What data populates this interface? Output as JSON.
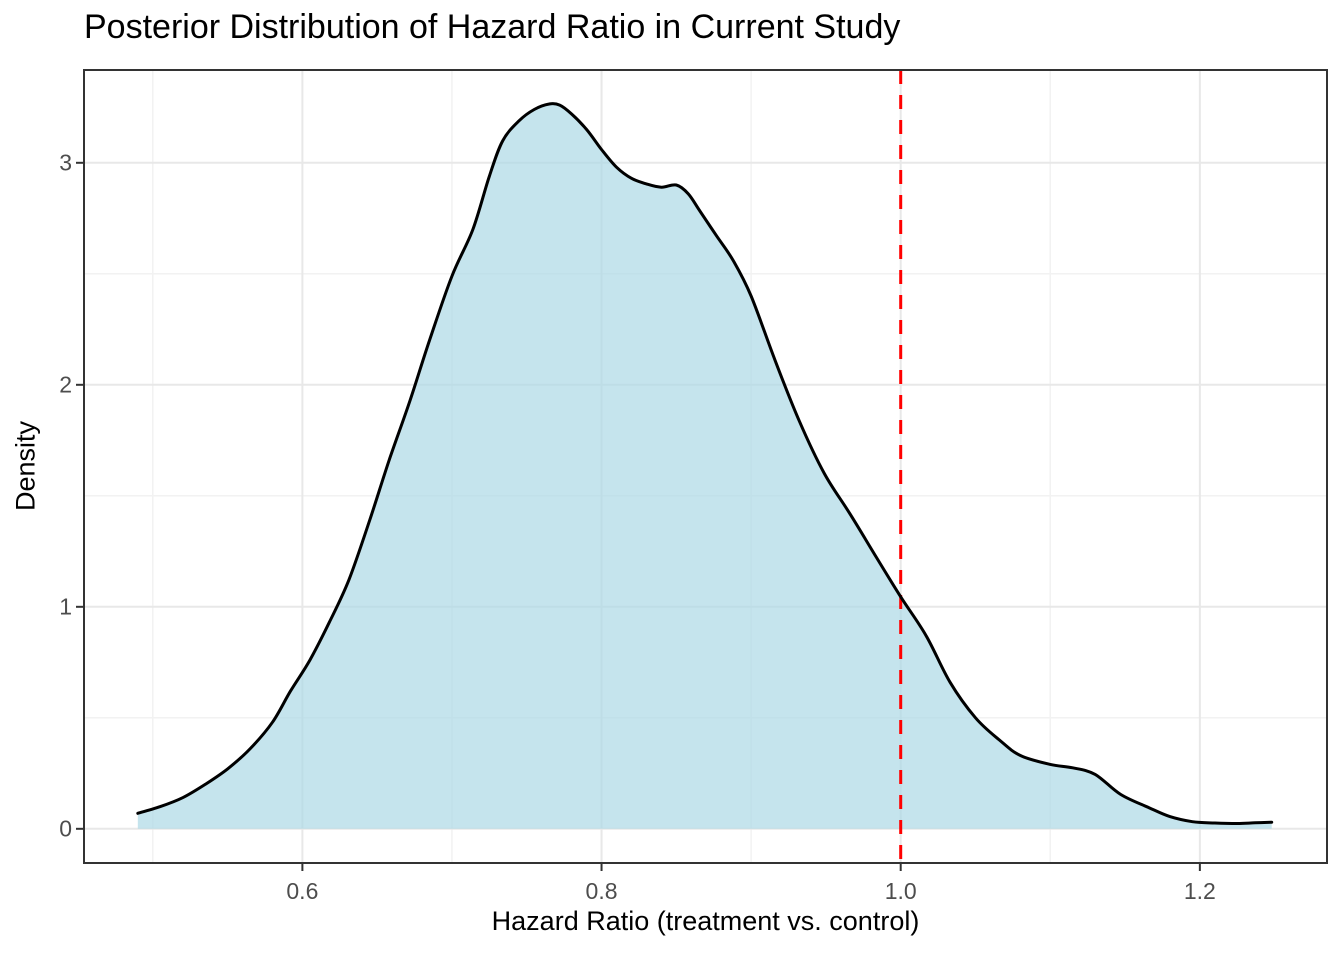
{
  "chart_data": {
    "type": "area",
    "subtype": "density",
    "title": "Posterior Distribution of Hazard Ratio in Current Study",
    "xlabel": "Hazard Ratio (treatment vs. control)",
    "ylabel": "Density",
    "x_ticks": [
      0.6,
      0.8,
      1.0,
      1.2
    ],
    "x_tick_labels": [
      "0.6",
      "0.8",
      "1.0",
      "1.2"
    ],
    "x_minor_ticks": [
      0.5,
      0.7,
      0.9,
      1.1
    ],
    "y_ticks": [
      0,
      1,
      2,
      3
    ],
    "y_tick_labels": [
      "0",
      "1",
      "2",
      "3"
    ],
    "y_minor_ticks": [
      0.5,
      1.5,
      2.5
    ],
    "xlim": [
      0.454,
      1.285
    ],
    "ylim": [
      -0.154,
      3.418
    ],
    "grid": true,
    "legend": false,
    "reference_line": {
      "x": 1.0,
      "style": "dashed",
      "color": "#FF0000"
    },
    "series": [
      {
        "name": "posterior-density",
        "x": [
          0.49,
          0.505,
          0.52,
          0.535,
          0.55,
          0.565,
          0.58,
          0.592,
          0.605,
          0.618,
          0.631,
          0.645,
          0.658,
          0.672,
          0.685,
          0.7,
          0.714,
          0.725,
          0.734,
          0.745,
          0.755,
          0.765,
          0.772,
          0.78,
          0.79,
          0.8,
          0.81,
          0.82,
          0.83,
          0.84,
          0.85,
          0.858,
          0.866,
          0.877,
          0.888,
          0.9,
          0.916,
          0.932,
          0.949,
          0.966,
          0.984,
          1.0,
          1.017,
          1.033,
          1.05,
          1.066,
          1.08,
          1.1,
          1.115,
          1.13,
          1.147,
          1.166,
          1.18,
          1.195,
          1.21,
          1.225,
          1.237,
          1.248
        ],
        "y": [
          0.07,
          0.1,
          0.14,
          0.2,
          0.27,
          0.36,
          0.48,
          0.62,
          0.76,
          0.93,
          1.12,
          1.39,
          1.66,
          1.93,
          2.2,
          2.49,
          2.7,
          2.94,
          3.1,
          3.19,
          3.24,
          3.265,
          3.26,
          3.22,
          3.15,
          3.06,
          2.98,
          2.93,
          2.905,
          2.89,
          2.9,
          2.86,
          2.78,
          2.67,
          2.56,
          2.4,
          2.11,
          1.84,
          1.6,
          1.42,
          1.22,
          1.045,
          0.87,
          0.66,
          0.5,
          0.4,
          0.33,
          0.29,
          0.275,
          0.245,
          0.155,
          0.095,
          0.055,
          0.032,
          0.026,
          0.024,
          0.027,
          0.03
        ]
      }
    ],
    "peak": {
      "x": 0.765,
      "y": 3.265
    },
    "density_at_reference": 1.045,
    "colors": {
      "fill": "#ADD8E6",
      "fill_opacity": 0.7,
      "line": "#000000",
      "reference": "#FF0000",
      "panel_border": "#333333",
      "grid_major": "#E8E8E8",
      "grid_minor": "#F2F2F2",
      "tick_text": "#4D4D4D",
      "tick_mark": "#333333"
    }
  }
}
